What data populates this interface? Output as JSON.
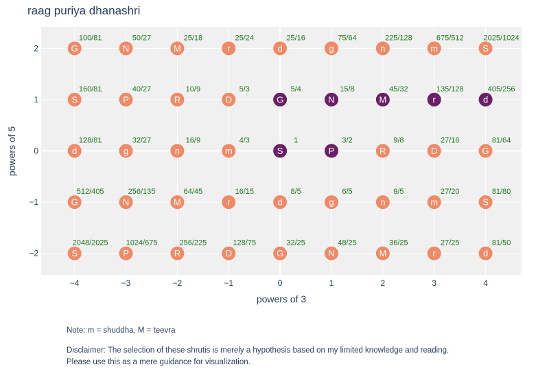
{
  "chart_data": {
    "type": "scatter",
    "title": "raag puriya dhanashri",
    "xlabel": "powers of 3",
    "ylabel": "powers of 5",
    "x_ticks": [
      -4,
      -3,
      -2,
      -1,
      0,
      1,
      2,
      3,
      4
    ],
    "y_ticks": [
      2,
      1,
      0,
      -1,
      -2
    ],
    "x_tick_labels": [
      "−4",
      "−3",
      "−2",
      "−1",
      "0",
      "1",
      "2",
      "3",
      "4"
    ],
    "y_tick_labels": [
      "2",
      "1",
      "0",
      "−1",
      "−2"
    ],
    "xlim": [
      -4.65,
      4.7
    ],
    "ylim": [
      -2.42,
      2.42
    ],
    "grid": true,
    "colors": {
      "plot_bg": "#f0f0f0",
      "grid": "#ffffff",
      "selected": "#6a1f66",
      "unselected": "#f08966",
      "ratio_text": "#1e7a1e",
      "text": "#2a3f5f"
    },
    "points": [
      {
        "x": -4,
        "y": 2,
        "note": "G",
        "ratio": "100/81",
        "selected": false
      },
      {
        "x": -3,
        "y": 2,
        "note": "N",
        "ratio": "50/27",
        "selected": false
      },
      {
        "x": -2,
        "y": 2,
        "note": "M",
        "ratio": "25/18",
        "selected": false
      },
      {
        "x": -1,
        "y": 2,
        "note": "r",
        "ratio": "25/24",
        "selected": false
      },
      {
        "x": 0,
        "y": 2,
        "note": "d",
        "ratio": "25/16",
        "selected": false
      },
      {
        "x": 1,
        "y": 2,
        "note": "g",
        "ratio": "75/64",
        "selected": false
      },
      {
        "x": 2,
        "y": 2,
        "note": "n",
        "ratio": "225/128",
        "selected": false
      },
      {
        "x": 3,
        "y": 2,
        "note": "m",
        "ratio": "675/512",
        "selected": false
      },
      {
        "x": 4,
        "y": 2,
        "note": "S",
        "ratio": "2025/1024",
        "selected": false
      },
      {
        "x": -4,
        "y": 1,
        "note": "S",
        "ratio": "160/81",
        "selected": false
      },
      {
        "x": -3,
        "y": 1,
        "note": "P",
        "ratio": "40/27",
        "selected": false
      },
      {
        "x": -2,
        "y": 1,
        "note": "R",
        "ratio": "10/9",
        "selected": false
      },
      {
        "x": -1,
        "y": 1,
        "note": "D",
        "ratio": "5/3",
        "selected": false
      },
      {
        "x": 0,
        "y": 1,
        "note": "G",
        "ratio": "5/4",
        "selected": true
      },
      {
        "x": 1,
        "y": 1,
        "note": "N",
        "ratio": "15/8",
        "selected": true
      },
      {
        "x": 2,
        "y": 1,
        "note": "M",
        "ratio": "45/32",
        "selected": true
      },
      {
        "x": 3,
        "y": 1,
        "note": "r",
        "ratio": "135/128",
        "selected": true
      },
      {
        "x": 4,
        "y": 1,
        "note": "d",
        "ratio": "405/256",
        "selected": true
      },
      {
        "x": -4,
        "y": 0,
        "note": "d",
        "ratio": "128/81",
        "selected": false
      },
      {
        "x": -3,
        "y": 0,
        "note": "g",
        "ratio": "32/27",
        "selected": false
      },
      {
        "x": -2,
        "y": 0,
        "note": "n",
        "ratio": "16/9",
        "selected": false
      },
      {
        "x": -1,
        "y": 0,
        "note": "m",
        "ratio": "4/3",
        "selected": false
      },
      {
        "x": 0,
        "y": 0,
        "note": "S",
        "ratio": "1",
        "selected": true
      },
      {
        "x": 1,
        "y": 0,
        "note": "P",
        "ratio": "3/2",
        "selected": true
      },
      {
        "x": 2,
        "y": 0,
        "note": "R",
        "ratio": "9/8",
        "selected": false
      },
      {
        "x": 3,
        "y": 0,
        "note": "D",
        "ratio": "27/16",
        "selected": false
      },
      {
        "x": 4,
        "y": 0,
        "note": "G",
        "ratio": "81/64",
        "selected": false
      },
      {
        "x": -4,
        "y": -1,
        "note": "G",
        "ratio": "512/405",
        "selected": false
      },
      {
        "x": -3,
        "y": -1,
        "note": "N",
        "ratio": "256/135",
        "selected": false
      },
      {
        "x": -2,
        "y": -1,
        "note": "M",
        "ratio": "64/45",
        "selected": false
      },
      {
        "x": -1,
        "y": -1,
        "note": "r",
        "ratio": "16/15",
        "selected": false
      },
      {
        "x": 0,
        "y": -1,
        "note": "d",
        "ratio": "8/5",
        "selected": false
      },
      {
        "x": 1,
        "y": -1,
        "note": "g",
        "ratio": "6/5",
        "selected": false
      },
      {
        "x": 2,
        "y": -1,
        "note": "n",
        "ratio": "9/5",
        "selected": false
      },
      {
        "x": 3,
        "y": -1,
        "note": "m",
        "ratio": "27/20",
        "selected": false
      },
      {
        "x": 4,
        "y": -1,
        "note": "S",
        "ratio": "81/80",
        "selected": false
      },
      {
        "x": -4,
        "y": -2,
        "note": "S",
        "ratio": "2048/2025",
        "selected": false
      },
      {
        "x": -3,
        "y": -2,
        "note": "P",
        "ratio": "1024/675",
        "selected": false
      },
      {
        "x": -2,
        "y": -2,
        "note": "R",
        "ratio": "256/225",
        "selected": false
      },
      {
        "x": -1,
        "y": -2,
        "note": "D",
        "ratio": "128/75",
        "selected": false
      },
      {
        "x": 0,
        "y": -2,
        "note": "G",
        "ratio": "32/25",
        "selected": false
      },
      {
        "x": 1,
        "y": -2,
        "note": "N",
        "ratio": "48/25",
        "selected": false
      },
      {
        "x": 2,
        "y": -2,
        "note": "M",
        "ratio": "36/25",
        "selected": false
      },
      {
        "x": 3,
        "y": -2,
        "note": "r",
        "ratio": "27/25",
        "selected": false
      },
      {
        "x": 4,
        "y": -2,
        "note": "d",
        "ratio": "81/50",
        "selected": false
      }
    ]
  },
  "notes": {
    "legend_note": "Note: m = shuddha, M = teevra",
    "disclaimer_line1": "Disclaimer: The selection of these shrutis is merely a hypothesis based on my limited knowledge and reading.",
    "disclaimer_line2": "Please use this as a mere guidance for visualization."
  }
}
